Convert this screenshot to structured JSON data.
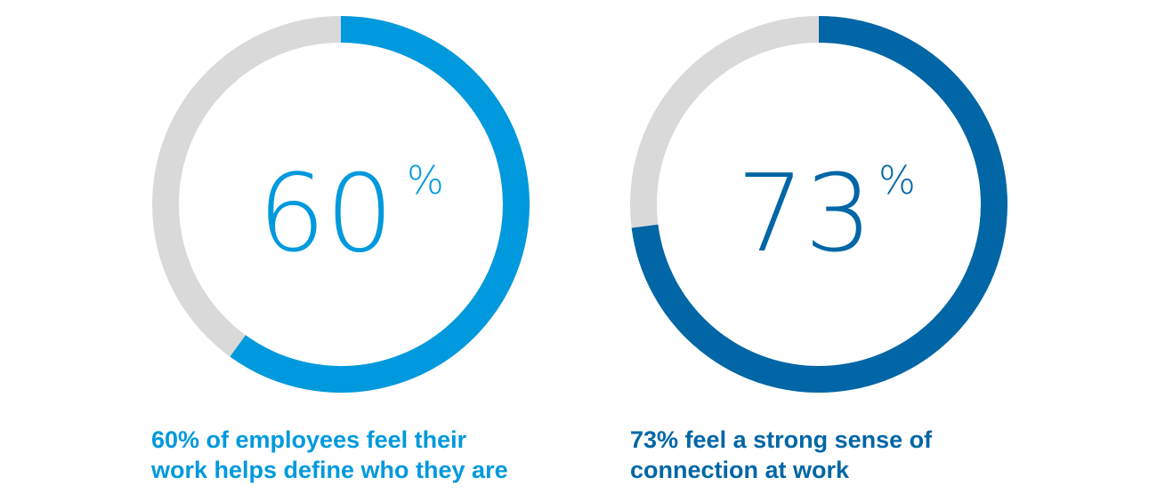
{
  "colors": {
    "track": "#d9d9d9",
    "series_a": "#0099dd",
    "series_b": "#0066a6"
  },
  "chart_data": [
    {
      "type": "donut",
      "value": 60,
      "max": 100,
      "value_label": "60",
      "unit": "%",
      "color": "#0099dd",
      "caption": [
        "60% of employees feel their",
        "work helps define who they are"
      ]
    },
    {
      "type": "donut",
      "value": 73,
      "max": 100,
      "value_label": "73",
      "unit": "%",
      "color": "#0066a6",
      "caption": [
        "73% feel a strong sense of",
        "connection at work"
      ]
    }
  ]
}
